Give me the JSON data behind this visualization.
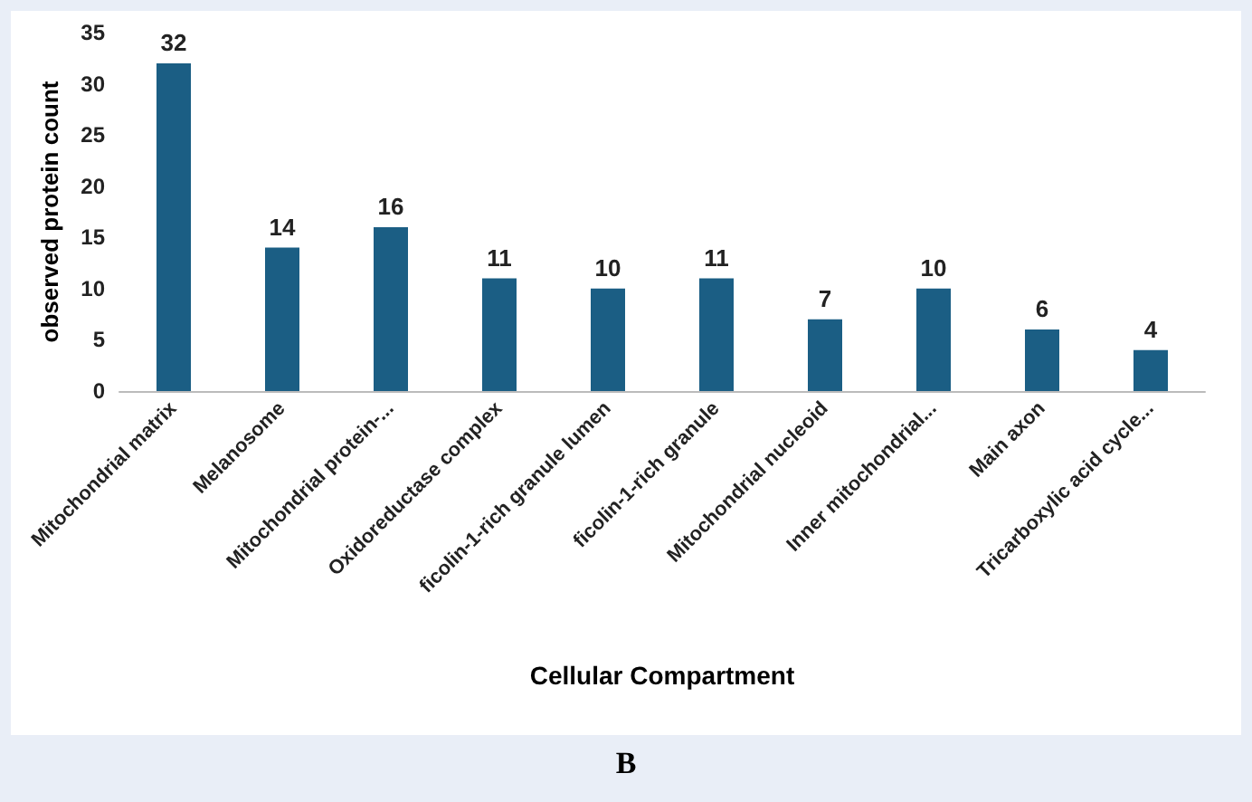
{
  "chart_data": {
    "type": "bar",
    "categories": [
      "Mitochondrial matrix",
      "Melanosome",
      "Mitochondrial protein-...",
      "Oxidoreductase complex",
      "ficolin-1-rich granule lumen",
      "ficolin-1-rich granule",
      "Mitochondrial nucleoid",
      "Inner mitochondrial...",
      "Main axon",
      "Tricarboxylic acid cycle..."
    ],
    "values": [
      32,
      14,
      16,
      11,
      10,
      11,
      7,
      10,
      6,
      4
    ],
    "color": "#1b5e84",
    "ylim": [
      0,
      35
    ],
    "yticks": [
      0,
      5,
      10,
      15,
      20,
      25,
      30,
      35
    ],
    "xlabel": "Cellular Compartment",
    "ylabel": "observed protein count",
    "data_labels": true,
    "grid": false,
    "annotations": [
      "B"
    ]
  }
}
